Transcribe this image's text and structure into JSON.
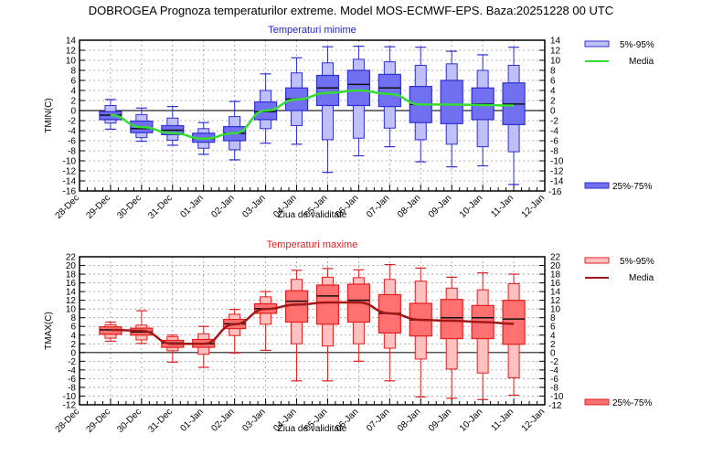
{
  "title": "DOBROGEA  Prognoza temperaturilor extreme.  Model MOS-ECMWF-EPS. Baza:20251228 00 UTC",
  "chart_data": [
    {
      "type": "boxplot",
      "title": "Temperaturi minime",
      "xlabel": "Ziua de validitate",
      "ylabel": "TMIN(C)",
      "ylim": [
        -16,
        14
      ],
      "ytick_step": 2,
      "x_ticks": [
        "28-Dec",
        "29-Dec",
        "30-Dec",
        "31-Dec",
        "01-Jan",
        "02-Jan",
        "03-Jan",
        "04-Jan",
        "05-Jan",
        "06-Jan",
        "07-Jan",
        "08-Jan",
        "09-Jan",
        "10-Jan",
        "11-Jan",
        "12-Jan"
      ],
      "right_axis_last_label": "-16",
      "grid": true,
      "colors": {
        "box": "#7070f0",
        "box_light": "#c0c0f8",
        "edge": "#3030d0",
        "mean": "#33dd33"
      },
      "legend": [
        {
          "label": "5%-95%"
        },
        {
          "label": "Media"
        },
        {
          "label": "25%-75%"
        }
      ],
      "categories": [
        "29-Dec",
        "30-Dec",
        "31-Dec",
        "01-Jan",
        "02-Jan",
        "03-Jan",
        "04-Jan",
        "05-Jan",
        "06-Jan",
        "07-Jan",
        "08-Jan",
        "09-Jan",
        "10-Jan",
        "11-Jan"
      ],
      "series": [
        {
          "name": "min",
          "values": [
            -3.7,
            -6.1,
            -6.9,
            -8.7,
            -9.8,
            -6.5,
            -6.7,
            -12.3,
            -9.0,
            -7.2,
            -10.2,
            -11.2,
            -11.0,
            -14.7
          ]
        },
        {
          "name": "p5",
          "values": [
            -2.5,
            -5.4,
            -5.9,
            -7.5,
            -7.8,
            -3.6,
            -3.0,
            -5.8,
            -5.5,
            -3.5,
            -5.8,
            -6.7,
            -7.2,
            -8.2
          ]
        },
        {
          "name": "p25",
          "values": [
            -1.8,
            -4.4,
            -4.8,
            -6.3,
            -6.0,
            -1.8,
            0.0,
            1.0,
            1.0,
            0.8,
            -2.4,
            -2.6,
            -1.8,
            -2.8
          ]
        },
        {
          "name": "median",
          "values": [
            -0.9,
            -3.6,
            -3.9,
            -5.6,
            -4.5,
            -0.2,
            2.3,
            4.5,
            5.2,
            4.5,
            1.2,
            1.2,
            1.3,
            1.3
          ]
        },
        {
          "name": "p75",
          "values": [
            -0.2,
            -2.1,
            -3.0,
            -4.5,
            -3.2,
            1.7,
            4.5,
            7.0,
            8.0,
            7.2,
            4.8,
            6.0,
            4.5,
            5.5
          ]
        },
        {
          "name": "p95",
          "values": [
            1.0,
            -0.8,
            -1.5,
            -3.6,
            -1.2,
            4.0,
            7.5,
            9.5,
            10.2,
            9.7,
            9.0,
            9.3,
            8.0,
            9.0
          ]
        },
        {
          "name": "max",
          "values": [
            2.2,
            0.5,
            0.8,
            -2.4,
            1.8,
            7.3,
            10.5,
            12.7,
            12.8,
            12.7,
            12.6,
            11.8,
            11.1,
            12.6
          ]
        },
        {
          "name": "Media",
          "values": [
            -0.9,
            -3.3,
            -4.5,
            -5.6,
            -4.5,
            0.0,
            2.2,
            3.5,
            4.0,
            3.3,
            1.2,
            1.2,
            1.1,
            1.0
          ]
        }
      ]
    },
    {
      "type": "boxplot",
      "title": "Temperaturi maxime",
      "xlabel": "Ziua de validitate",
      "ylabel": "TMAX(C)",
      "ylim": [
        -12,
        22
      ],
      "ytick_step": 2,
      "x_ticks": [
        "28-Dec",
        "29-Dec",
        "30-Dec",
        "31-Dec",
        "01-Jan",
        "02-Jan",
        "03-Jan",
        "04-Jan",
        "05-Jan",
        "06-Jan",
        "07-Jan",
        "08-Jan",
        "09-Jan",
        "10-Jan",
        "11-Jan",
        "12-Jan"
      ],
      "right_axis_last_label": "-12",
      "grid": true,
      "colors": {
        "box": "#ff7070",
        "box_light": "#ffc0c0",
        "edge": "#e02020",
        "mean": "#a01818"
      },
      "legend": [
        {
          "label": "5%-95%"
        },
        {
          "label": "Media"
        },
        {
          "label": "25%-75%"
        }
      ],
      "categories": [
        "29-Dec",
        "30-Dec",
        "31-Dec",
        "01-Jan",
        "02-Jan",
        "03-Jan",
        "04-Jan",
        "05-Jan",
        "06-Jan",
        "07-Jan",
        "08-Jan",
        "09-Jan",
        "10-Jan",
        "11-Jan"
      ],
      "series": [
        {
          "name": "min",
          "values": [
            2.6,
            2.1,
            -2.2,
            -3.4,
            -0.1,
            0.5,
            -6.5,
            -6.5,
            -2.0,
            -6.5,
            -10.2,
            -10.5,
            -10.8,
            -9.8
          ]
        },
        {
          "name": "p5",
          "values": [
            3.3,
            2.9,
            0.4,
            -0.4,
            3.9,
            6.5,
            2.0,
            1.5,
            2.0,
            1.0,
            -1.5,
            -3.8,
            -4.7,
            -5.8
          ]
        },
        {
          "name": "p25",
          "values": [
            4.2,
            4.0,
            1.2,
            1.2,
            5.5,
            9.0,
            7.0,
            6.5,
            7.0,
            4.5,
            3.8,
            3.2,
            3.2,
            1.9
          ]
        },
        {
          "name": "median",
          "values": [
            5.2,
            4.7,
            2.2,
            2.0,
            6.6,
            10.1,
            11.8,
            13.0,
            12.0,
            9.0,
            7.5,
            8.0,
            8.0,
            7.7
          ]
        },
        {
          "name": "p75",
          "values": [
            5.9,
            5.6,
            2.8,
            3.0,
            7.6,
            11.2,
            14.2,
            15.5,
            15.7,
            13.3,
            11.3,
            12.2,
            10.8,
            12.0
          ]
        },
        {
          "name": "p95",
          "values": [
            6.4,
            6.3,
            3.6,
            4.3,
            8.8,
            12.8,
            16.8,
            17.3,
            17.2,
            16.8,
            16.4,
            14.8,
            14.4,
            15.8
          ]
        },
        {
          "name": "max",
          "values": [
            7.0,
            9.6,
            4.0,
            6.0,
            9.9,
            14.0,
            18.9,
            19.3,
            19.0,
            20.2,
            19.4,
            17.3,
            18.3,
            18.0
          ]
        },
        {
          "name": "Media",
          "values": [
            5.2,
            5.0,
            2.0,
            2.0,
            6.5,
            10.0,
            11.0,
            11.5,
            11.5,
            9.0,
            7.5,
            7.3,
            7.0,
            6.6
          ]
        }
      ]
    }
  ]
}
